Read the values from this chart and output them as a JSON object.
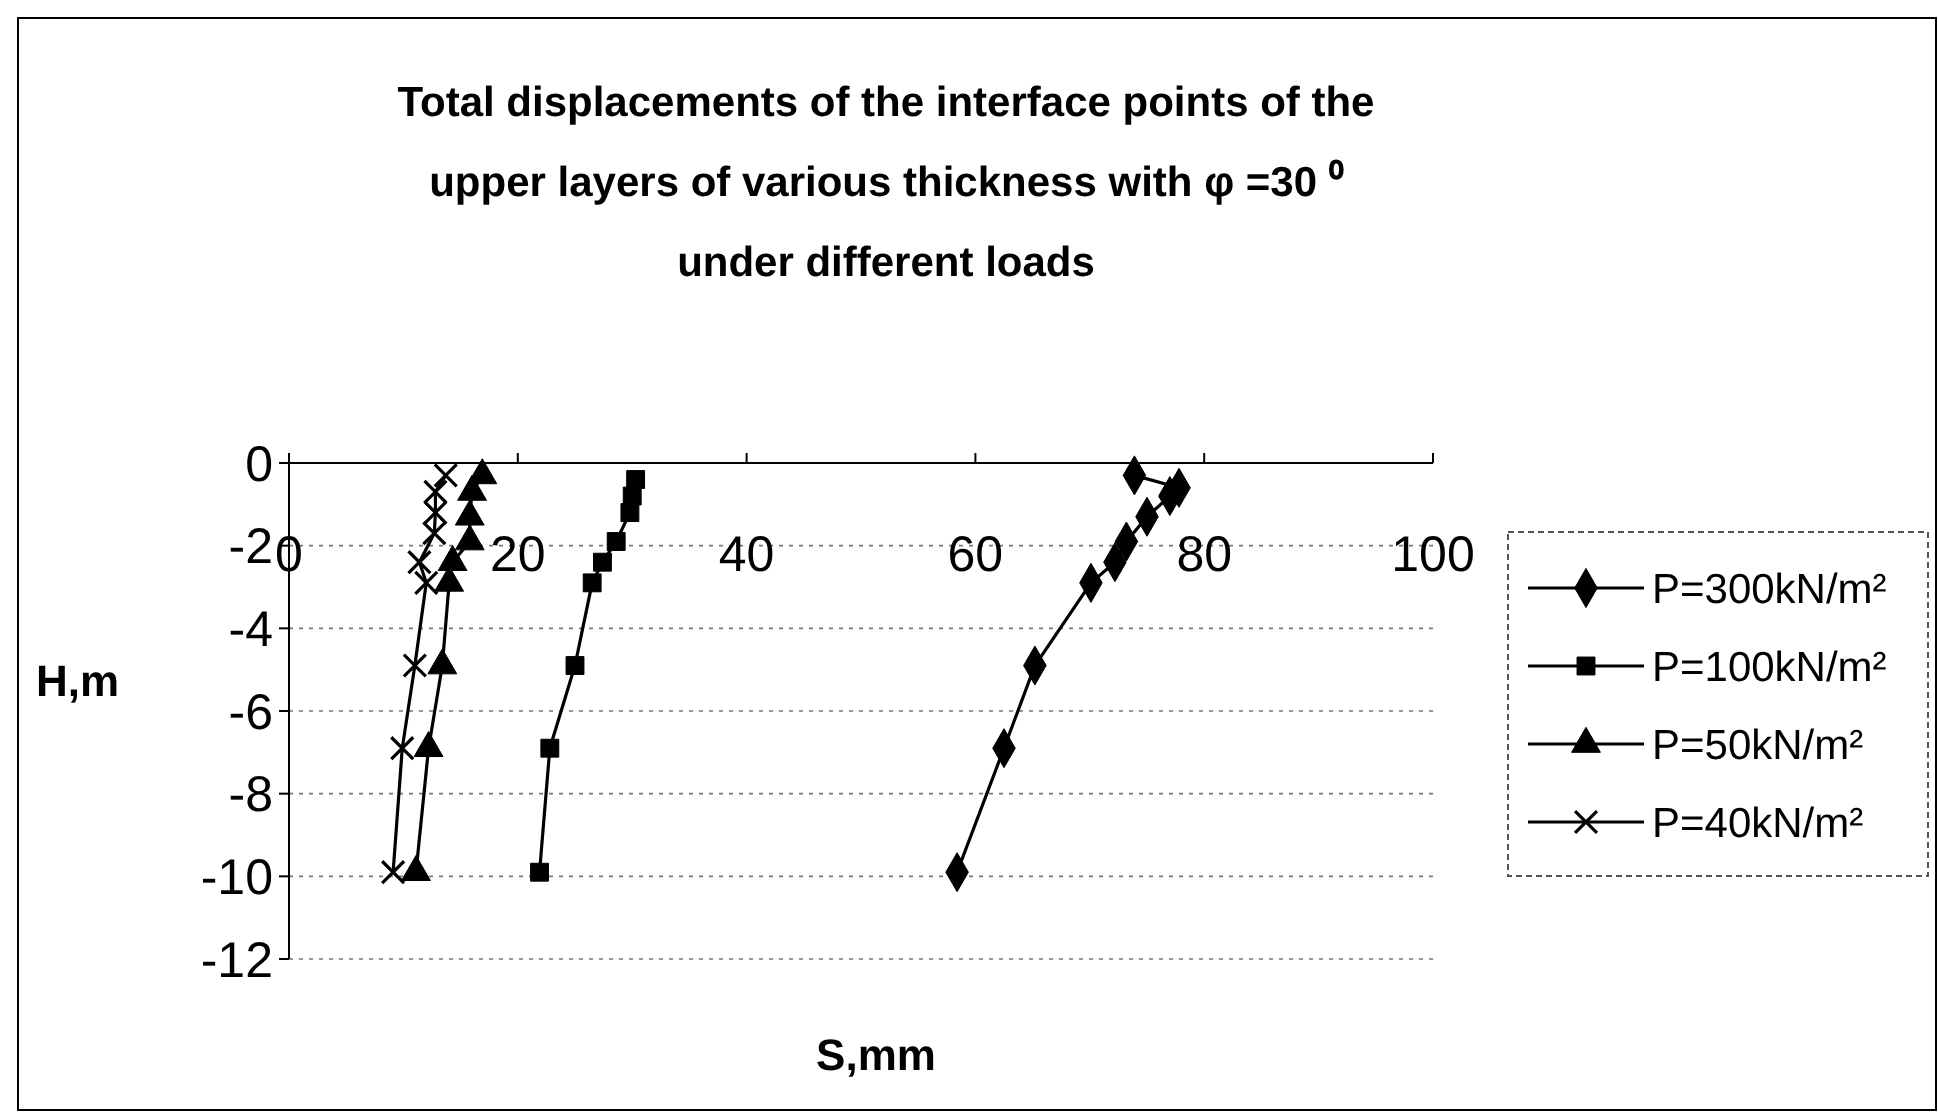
{
  "chart_data": {
    "type": "line",
    "title": "Total displacements of the interface points of the\nupper layers of various thickness with     φ =30 ⁰\nunder different loads",
    "xlabel": "S,mm",
    "ylabel": "H,m",
    "xlim": [
      0,
      100
    ],
    "xticks": [
      0,
      20,
      40,
      60,
      80,
      100
    ],
    "ylim": [
      -12,
      0
    ],
    "yticks": [
      0,
      -2,
      -4,
      -6,
      -8,
      -10,
      -12
    ],
    "grid": "y",
    "legend": "right",
    "line_style": "solid",
    "series": [
      {
        "name": "P=300kN/m²",
        "color": "#000000",
        "marker": "diamond",
        "x": [
          73.9,
          77.8,
          77.0,
          75.0,
          73.2,
          72.2,
          70.1,
          65.2,
          62.5,
          58.4
        ],
        "values": [
          -0.3,
          -0.6,
          -0.8,
          -1.3,
          -1.9,
          -2.4,
          -2.9,
          -4.9,
          -6.9,
          -9.9
        ]
      },
      {
        "name": "P=100kN/m²",
        "color": "#000000",
        "marker": "square",
        "x": [
          30.3,
          30.0,
          29.8,
          28.6,
          27.4,
          26.5,
          25.0,
          22.8,
          21.9
        ],
        "values": [
          -0.4,
          -0.8,
          -1.2,
          -1.9,
          -2.4,
          -2.9,
          -4.9,
          -6.9,
          -9.9
        ]
      },
      {
        "name": "P=50kN/m²",
        "color": "#000000",
        "marker": "triangle",
        "x": [
          16.9,
          16.0,
          15.8,
          15.8,
          14.3,
          14.0,
          13.4,
          12.2,
          11.1
        ],
        "values": [
          -0.3,
          -0.7,
          -1.3,
          -1.9,
          -2.4,
          -2.9,
          -4.9,
          -6.9,
          -9.9
        ]
      },
      {
        "name": "P=40kN/m²",
        "color": "#000000",
        "marker": "cross",
        "x": [
          13.7,
          12.8,
          12.8,
          12.7,
          11.4,
          12.0,
          11.0,
          9.9,
          9.1
        ],
        "values": [
          -0.3,
          -0.7,
          -1.2,
          -1.7,
          -2.4,
          -2.9,
          -4.9,
          -6.9,
          -9.9
        ]
      }
    ]
  }
}
